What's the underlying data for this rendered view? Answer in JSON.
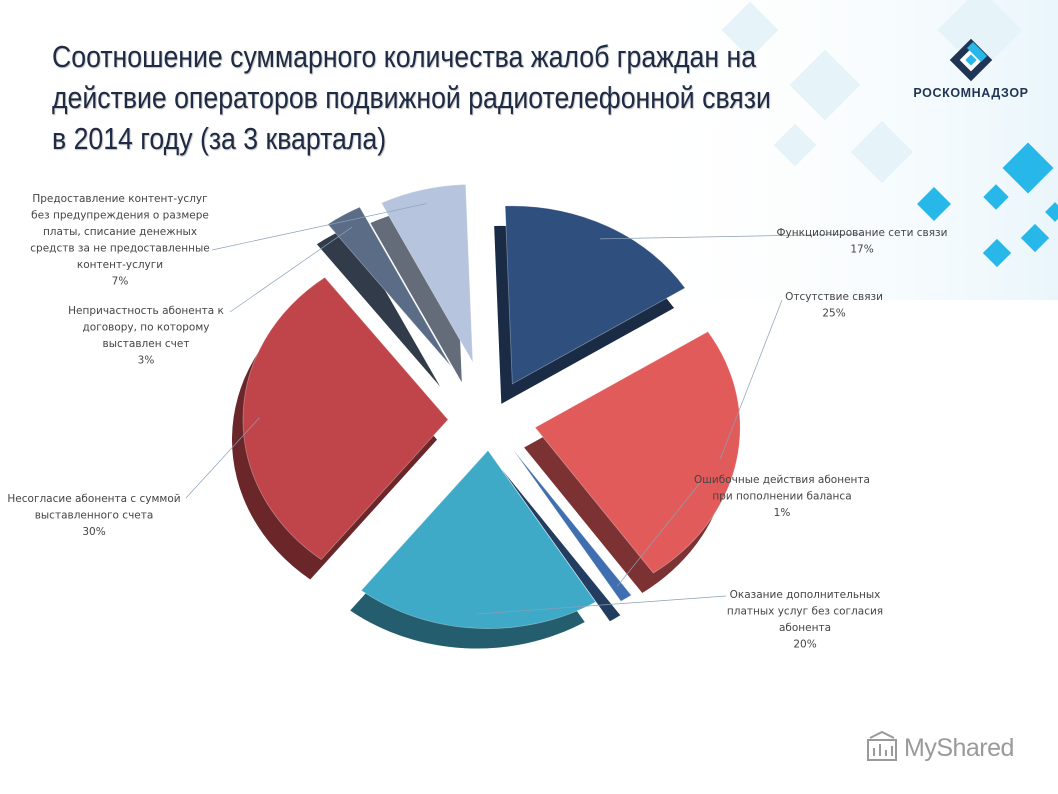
{
  "slide": {
    "title_lines": [
      "Соотношение  суммарного количества жалоб граждан на",
      "действие операторов подвижной радиотелефонной связи",
      "в 2014 году (за 3 квартала)"
    ],
    "logo_text": "РОСКОМНАДЗОР",
    "watermark_text": "MyShared",
    "colors": {
      "title": "#1f2a44",
      "accent_squares": "#27b7e8"
    }
  },
  "chart_data": {
    "type": "pie",
    "title": "",
    "style": "3d-exploded",
    "series": [
      {
        "name": "Функционирование  сети связи",
        "value": 17,
        "label_lines": [
          "Функционирование  сети связи",
          "17%"
        ],
        "color": "#2f4f7e"
      },
      {
        "name": "Отсутствие связи",
        "value": 25,
        "label_lines": [
          "Отсутствие связи",
          "25%"
        ],
        "color": "#e25b5b"
      },
      {
        "name": "Ошибочные действия абонента при пополнении баланса",
        "value": 1,
        "label_lines": [
          "Ошибочные действия абонента",
          "при пополнении баланса",
          "1%"
        ],
        "color": "#3f6fb0"
      },
      {
        "name": "Оказание дополнительных платных услуг без согласия абонента",
        "value": 20,
        "label_lines": [
          "Оказание дополнительных",
          "платных услуг без согласия",
          "абонента",
          "20%"
        ],
        "color": "#3fa9c8"
      },
      {
        "name": "Несогласие абонента с суммой выставленного счета",
        "value": 30,
        "label_lines": [
          "Несогласие абонента с суммой",
          "выставленного счета",
          "30%"
        ],
        "color": "#c0454a"
      },
      {
        "name": "Непричастность абонента к договору, по которому выставлен счет",
        "value": 3,
        "label_lines": [
          "Непричастность абонента к",
          "договору, по которому",
          "выставлен счет",
          "3%"
        ],
        "color": "#5a6c86"
      },
      {
        "name": "Предоставление контент-услуг без предупреждения о размере платы, списание денежных средств за не предоставленные контент-услуги",
        "value": 7,
        "label_lines": [
          "Предоставление контент-услуг",
          "без предупреждения о размере",
          "платы, списание денежных",
          "средств за не предоставленные",
          "контент-услуги",
          "7%"
        ],
        "color": "#b6c4dd"
      }
    ]
  }
}
